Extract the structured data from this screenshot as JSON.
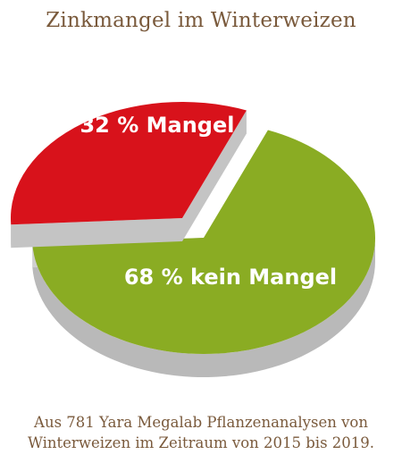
{
  "title": "Zinkmangel im Winterweizen",
  "caption": {
    "line1": "Aus 781 Yara Megalab Pflanzenanalysen von",
    "line2": "Winterweizen im Zeitraum von 2015 bis 2019."
  },
  "colors": {
    "mangel": "#d8121b",
    "kein_mangel": "#8aac23",
    "side": "#b9b9b9",
    "text": "#7a5a3c"
  },
  "chart_data": {
    "type": "pie",
    "title": "Zinkmangel im Winterweizen",
    "slices": [
      {
        "label": "32 % Mangel",
        "value": 32,
        "color": "#d8121b",
        "exploded": true
      },
      {
        "label": "68 % kein Mangel",
        "value": 68,
        "color": "#8aac23",
        "exploded": false
      }
    ]
  }
}
